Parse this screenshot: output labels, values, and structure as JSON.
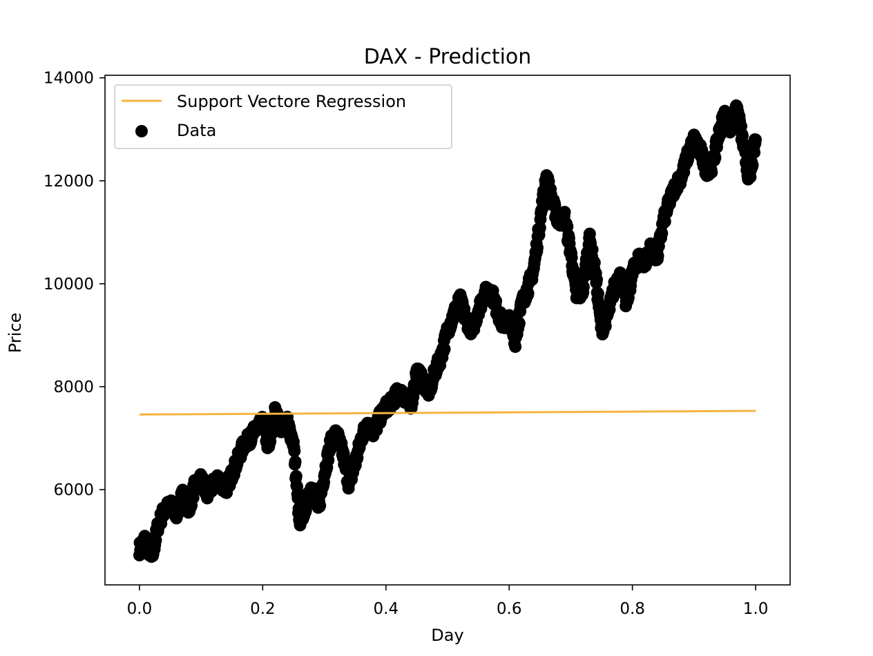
{
  "chart_data": {
    "type": "scatter",
    "title": "DAX - Prediction",
    "xlabel": "Day",
    "ylabel": "Price",
    "xlim": [
      -0.056,
      1.056
    ],
    "ylim": [
      4150,
      14050
    ],
    "xticks": [
      0.0,
      0.2,
      0.4,
      0.6,
      0.8,
      1.0
    ],
    "xtick_labels": [
      "0.0",
      "0.2",
      "0.4",
      "0.6",
      "0.8",
      "1.0"
    ],
    "yticks": [
      6000,
      8000,
      10000,
      12000,
      14000
    ],
    "ytick_labels": [
      "6000",
      "8000",
      "10000",
      "12000",
      "14000"
    ],
    "grid": false,
    "legend": {
      "position": "top-left",
      "entries": [
        "Support Vectore Regression",
        "Data"
      ]
    },
    "series": [
      {
        "name": "Support Vectore Regression",
        "kind": "line",
        "color": "#f5b53f",
        "x": [
          0.0,
          1.0
        ],
        "y": [
          7460,
          7530
        ]
      },
      {
        "name": "Data",
        "kind": "scatter",
        "color": "#000000",
        "x": [
          0.0,
          0.01,
          0.02,
          0.03,
          0.04,
          0.05,
          0.06,
          0.07,
          0.08,
          0.09,
          0.1,
          0.11,
          0.12,
          0.13,
          0.14,
          0.15,
          0.16,
          0.17,
          0.18,
          0.19,
          0.2,
          0.21,
          0.22,
          0.23,
          0.24,
          0.25,
          0.26,
          0.27,
          0.28,
          0.29,
          0.3,
          0.31,
          0.32,
          0.33,
          0.34,
          0.35,
          0.36,
          0.37,
          0.38,
          0.39,
          0.4,
          0.41,
          0.42,
          0.43,
          0.44,
          0.45,
          0.46,
          0.47,
          0.48,
          0.49,
          0.5,
          0.51,
          0.52,
          0.53,
          0.54,
          0.55,
          0.56,
          0.57,
          0.58,
          0.59,
          0.6,
          0.61,
          0.62,
          0.63,
          0.64,
          0.65,
          0.66,
          0.67,
          0.68,
          0.69,
          0.7,
          0.71,
          0.72,
          0.73,
          0.74,
          0.75,
          0.76,
          0.77,
          0.78,
          0.79,
          0.8,
          0.81,
          0.82,
          0.83,
          0.84,
          0.85,
          0.86,
          0.87,
          0.88,
          0.89,
          0.9,
          0.91,
          0.92,
          0.93,
          0.94,
          0.95,
          0.96,
          0.97,
          0.98,
          0.99,
          1.0
        ],
        "y": [
          4850,
          5050,
          4650,
          5300,
          5600,
          5700,
          5550,
          5900,
          5600,
          6100,
          6200,
          5900,
          6100,
          6200,
          6000,
          6300,
          6600,
          6900,
          7000,
          7200,
          7300,
          6800,
          7500,
          7200,
          7300,
          6900,
          5300,
          5700,
          6100,
          5600,
          6300,
          6900,
          7100,
          6700,
          6100,
          6500,
          7000,
          7300,
          7100,
          7400,
          7600,
          7700,
          7900,
          7800,
          7600,
          8300,
          8100,
          7900,
          8300,
          8600,
          9100,
          9400,
          9700,
          9300,
          9100,
          9500,
          9800,
          9900,
          9500,
          9200,
          9300,
          8900,
          9600,
          9900,
          10300,
          11200,
          12100,
          11600,
          11200,
          11300,
          10600,
          9700,
          9900,
          10900,
          10200,
          9100,
          9400,
          9900,
          10200,
          9600,
          10200,
          10500,
          10400,
          10700,
          10500,
          11200,
          11600,
          11900,
          12100,
          12500,
          12800,
          12600,
          12200,
          12300,
          12900,
          13300,
          13000,
          13400,
          12700,
          12000,
          12800
        ]
      }
    ]
  }
}
